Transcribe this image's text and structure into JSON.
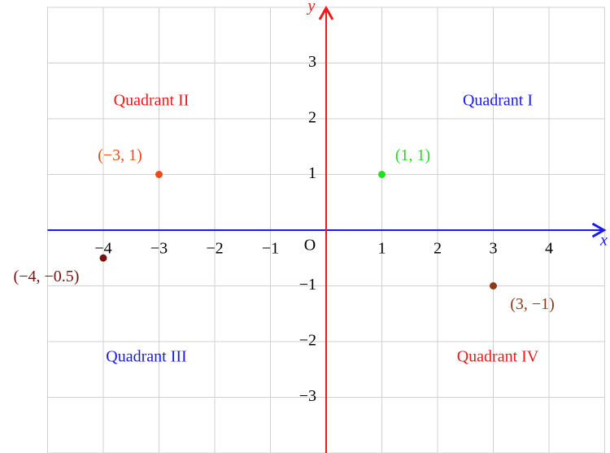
{
  "chart_data": {
    "type": "scatter",
    "xlim": [
      -5,
      5
    ],
    "ylim": [
      -4,
      4
    ],
    "xticks": [
      {
        "value": -4,
        "label": "−4"
      },
      {
        "value": -3,
        "label": "−3"
      },
      {
        "value": -2,
        "label": "−2"
      },
      {
        "value": -1,
        "label": "−1"
      },
      1,
      2,
      3,
      4
    ],
    "yticks": [
      {
        "value": -3,
        "label": "−3"
      },
      {
        "value": -2,
        "label": "−2"
      },
      {
        "value": -1,
        "label": "−1"
      },
      1,
      2,
      3
    ],
    "grid": true,
    "x_label": "x",
    "y_label": "y",
    "origin_label": "O",
    "x_axis_color": "#1a1aee",
    "y_axis_color": "#ee1a1a",
    "points": [
      {
        "x": -3,
        "y": 1,
        "label": "(−3, 1)",
        "color": "#f04a1a"
      },
      {
        "x": 1,
        "y": 1,
        "label": "(1, 1)",
        "color": "#22dd22"
      },
      {
        "x": -4,
        "y": -0.5,
        "label": "(−4, −0.5)",
        "color": "#7a1010"
      },
      {
        "x": 3,
        "y": -1,
        "label": "(3, −1)",
        "color": "#8b3a1a"
      }
    ],
    "annotations": [
      {
        "text": "Quadrant II",
        "color": "#ee1a1a"
      },
      {
        "text": "Quadrant I",
        "color": "#1a1aee"
      },
      {
        "text": "Quadrant III",
        "color": "#1a1aee"
      },
      {
        "text": "Quadrant IV",
        "color": "#ee1a1a"
      }
    ]
  }
}
